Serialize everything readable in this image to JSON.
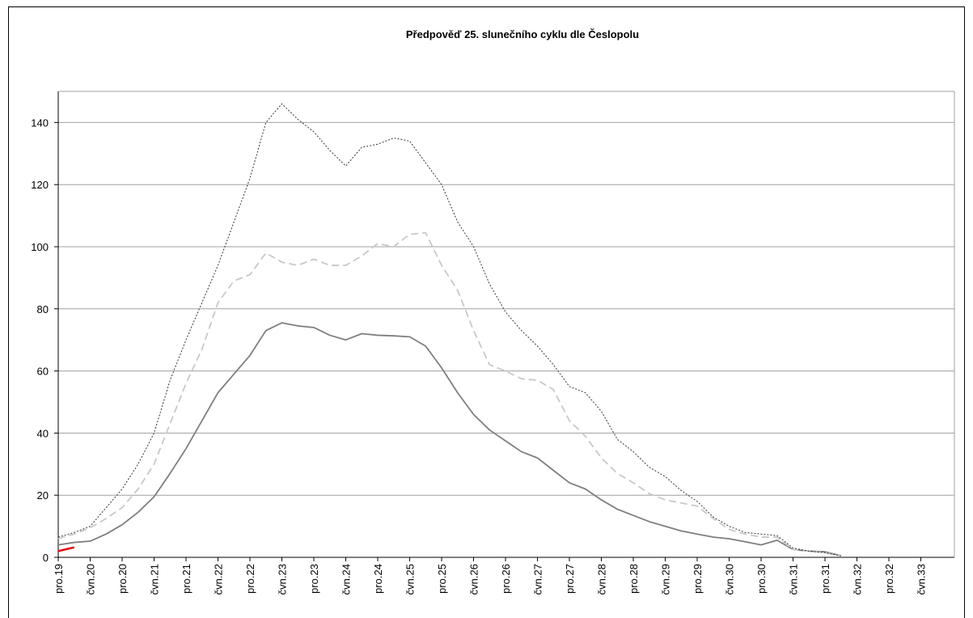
{
  "chart_data": {
    "type": "line",
    "title": "Předpověď 25. slunečního cyklu dle Česlopolu",
    "categories": [
      "pro.19",
      null,
      "čvn.20",
      null,
      "pro.20",
      null,
      "čvn.21",
      null,
      "pro.21",
      null,
      "čvn.22",
      null,
      "pro.22",
      null,
      "čvn.23",
      null,
      "pro.23",
      null,
      "čvn.24",
      null,
      "pro.24",
      null,
      "čvn.25",
      null,
      "pro.25",
      null,
      "čvn.26",
      null,
      "pro.26",
      null,
      "čvn.27",
      null,
      "pro.27",
      null,
      "čvn.28",
      null,
      "pro.28",
      null,
      "čvn.29",
      null,
      "pro.29",
      null,
      "čvn.30",
      null,
      "pro.30",
      null,
      "čvn.31",
      null,
      "pro.31",
      null,
      "čvn.32",
      null,
      "pro.32",
      null,
      "čvn.33",
      null,
      null
    ],
    "series": [
      {
        "color": "#7f7f7f",
        "dash": "none",
        "values": [
          4,
          4.8,
          5.2,
          7.5,
          10.5,
          14.5,
          19.5,
          27,
          35,
          44,
          53,
          59,
          65,
          73,
          75.5,
          74.5,
          74,
          71.5,
          70,
          72,
          71.5,
          71.3,
          71,
          68,
          61,
          53,
          46,
          41,
          37.5,
          34,
          32,
          28,
          24,
          22,
          18.5,
          15.5,
          13.5,
          11.5,
          10,
          8.5,
          7.5,
          6.5,
          6,
          5,
          4,
          5.5,
          2.5,
          2,
          1.8,
          0.5,
          null,
          null,
          null,
          null,
          null,
          null,
          null
        ]
      },
      {
        "color": "#c8c8c8",
        "dash": "9,5",
        "values": [
          6,
          7.5,
          9.5,
          12.5,
          16,
          22,
          30,
          43,
          56,
          67,
          82,
          89,
          91,
          98,
          95,
          94,
          96,
          94,
          94,
          97,
          101,
          100,
          104,
          104.5,
          94,
          86,
          73,
          62,
          60,
          57.5,
          57,
          54,
          44,
          39,
          32,
          27,
          24,
          20.5,
          18.5,
          17.5,
          16.5,
          12.5,
          9,
          7.5,
          6.5,
          6.5,
          2.5,
          2,
          1.5,
          0.5,
          null,
          null,
          null,
          null,
          null,
          null,
          null
        ]
      },
      {
        "color": "#333333",
        "dash": "2,2",
        "values": [
          6.5,
          8,
          10,
          16,
          22,
          30,
          40,
          57,
          70,
          82,
          94,
          108,
          122,
          140,
          146,
          141,
          137,
          131,
          126,
          132,
          133,
          135,
          134,
          127,
          120,
          108,
          100,
          88,
          79,
          73,
          68,
          62,
          55,
          53,
          47,
          38,
          34,
          29,
          26,
          21.5,
          18,
          13,
          10,
          8,
          7.5,
          7,
          3,
          2,
          1.5,
          0.5,
          null,
          null,
          null,
          null,
          null,
          null,
          null
        ]
      },
      {
        "color": "#e00000",
        "dash": "none",
        "values": [
          2,
          3.2,
          null,
          null,
          null,
          null,
          null,
          null,
          null,
          null,
          null,
          null,
          null,
          null,
          null,
          null,
          null,
          null,
          null,
          null,
          null,
          null,
          null,
          null,
          null,
          null,
          null,
          null,
          null,
          null,
          null,
          null,
          null,
          null,
          null,
          null,
          null,
          null,
          null,
          null,
          null,
          null,
          null,
          null,
          null,
          null,
          null,
          null,
          null,
          null,
          null,
          null,
          null,
          null,
          null,
          null,
          null
        ]
      }
    ],
    "ylim": [
      0,
      150
    ],
    "yticks": [
      0,
      20,
      40,
      60,
      80,
      100,
      120,
      140
    ],
    "grid": true
  }
}
